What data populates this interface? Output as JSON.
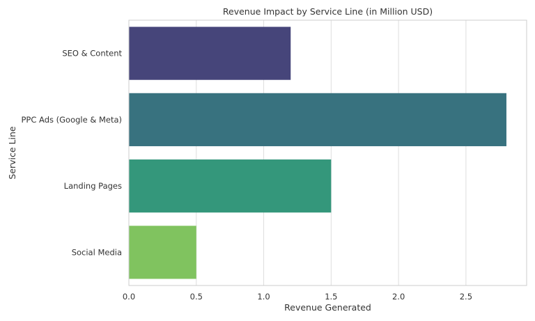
{
  "chart_data": {
    "type": "bar",
    "orientation": "horizontal",
    "title": "Revenue Impact by Service Line (in Million USD)",
    "xlabel": "Revenue Generated",
    "ylabel": "Service Line",
    "categories": [
      "SEO & Content",
      "PPC Ads (Google & Meta)",
      "Landing Pages",
      "Social Media"
    ],
    "values": [
      1.2,
      2.8,
      1.5,
      0.5
    ],
    "colors": [
      "#46457a",
      "#38727f",
      "#34977b",
      "#80c35f"
    ],
    "xlim": [
      0,
      2.95
    ],
    "xticks": [
      0.0,
      0.5,
      1.0,
      1.5,
      2.0,
      2.5
    ],
    "xtick_labels": [
      "0.0",
      "0.5",
      "1.0",
      "1.5",
      "2.0",
      "2.5"
    ],
    "grid": "x-axis vertical lines",
    "legend": "none"
  }
}
